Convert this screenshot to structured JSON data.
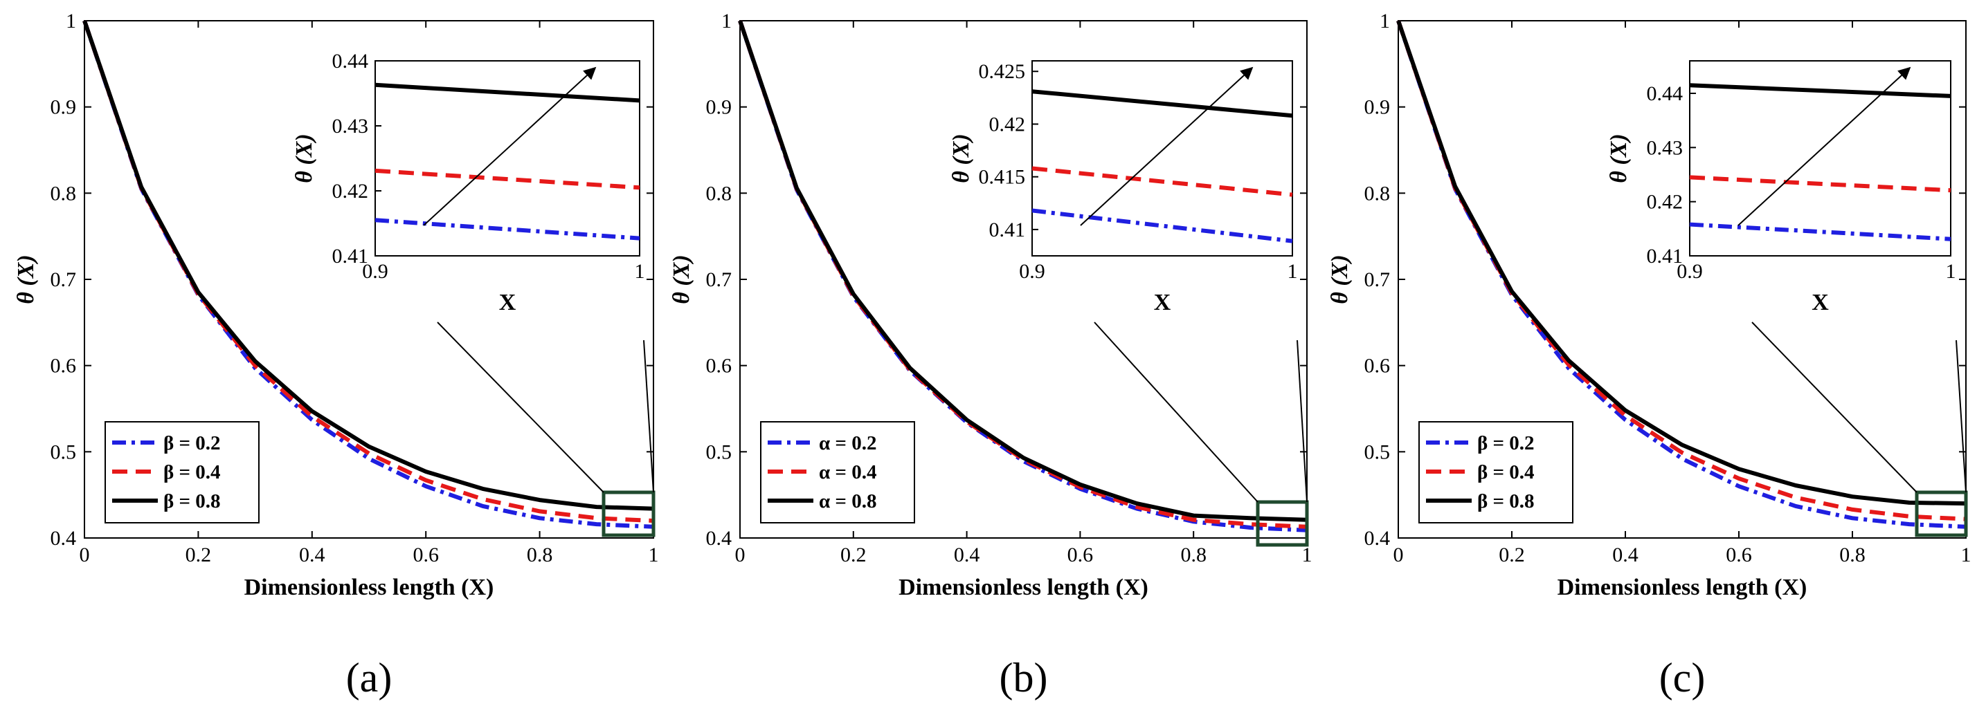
{
  "chart_data": [
    {
      "panel": "(a)",
      "type": "line",
      "xlabel": "Dimensionless length (X)",
      "ylabel": "θ (X)",
      "xlim": [
        0,
        1
      ],
      "ylim": [
        0.4,
        1
      ],
      "xticks": [
        "0",
        "0.2",
        "0.4",
        "0.6",
        "0.8",
        "1"
      ],
      "yticks": [
        "0.4",
        "0.5",
        "0.6",
        "0.7",
        "0.8",
        "0.9",
        "1"
      ],
      "legend_position": "bottom-left",
      "x": [
        0,
        0.1,
        0.2,
        0.3,
        0.4,
        0.5,
        0.6,
        0.7,
        0.8,
        0.9,
        1.0
      ],
      "series": [
        {
          "name": "β = 0.2",
          "style": "dash-dot",
          "color": "#1f1fe0",
          "values": [
            1.0,
            0.805,
            0.682,
            0.597,
            0.537,
            0.492,
            0.46,
            0.437,
            0.423,
            0.416,
            0.413
          ]
        },
        {
          "name": "β = 0.4",
          "style": "dashed",
          "color": "#e61919",
          "values": [
            1.0,
            0.806,
            0.683,
            0.6,
            0.541,
            0.498,
            0.467,
            0.445,
            0.431,
            0.423,
            0.42
          ]
        },
        {
          "name": "β = 0.8",
          "style": "solid",
          "color": "#000000",
          "values": [
            1.0,
            0.807,
            0.685,
            0.605,
            0.547,
            0.506,
            0.477,
            0.457,
            0.444,
            0.436,
            0.434
          ]
        }
      ],
      "inset": {
        "xlabel": "X",
        "ylabel": "θ (X)",
        "xlim": [
          0.9,
          1
        ],
        "ylim": [
          0.41,
          0.44
        ],
        "xticks": [
          "0.9",
          "1"
        ],
        "yticks": [
          "0.41",
          "0.42",
          "0.43",
          "0.44"
        ],
        "series_values": [
          [
            0.4155,
            0.4127
          ],
          [
            0.4231,
            0.4205
          ],
          [
            0.4363,
            0.4339
          ]
        ],
        "arrow": "increasing β"
      }
    },
    {
      "panel": "(b)",
      "type": "line",
      "xlabel": "Dimensionless length (X)",
      "ylabel": "θ (X)",
      "xlim": [
        0,
        1
      ],
      "ylim": [
        0.4,
        1
      ],
      "xticks": [
        "0",
        "0.2",
        "0.4",
        "0.6",
        "0.8",
        "1"
      ],
      "yticks": [
        "0.4",
        "0.5",
        "0.6",
        "0.7",
        "0.8",
        "0.9",
        "1"
      ],
      "legend_position": "bottom-left",
      "x": [
        0,
        0.1,
        0.2,
        0.3,
        0.4,
        0.5,
        0.6,
        0.7,
        0.8,
        0.9,
        1.0
      ],
      "series": [
        {
          "name": "α = 0.2",
          "style": "dash-dot",
          "color": "#1f1fe0",
          "values": [
            1.0,
            0.804,
            0.68,
            0.594,
            0.534,
            0.489,
            0.457,
            0.434,
            0.419,
            0.412,
            0.409
          ]
        },
        {
          "name": "α = 0.4",
          "style": "dashed",
          "color": "#e61919",
          "values": [
            1.0,
            0.805,
            0.681,
            0.595,
            0.535,
            0.491,
            0.459,
            0.436,
            0.421,
            0.416,
            0.413
          ]
        },
        {
          "name": "α = 0.8",
          "style": "solid",
          "color": "#000000",
          "values": [
            1.0,
            0.806,
            0.683,
            0.597,
            0.537,
            0.493,
            0.462,
            0.44,
            0.426,
            0.423,
            0.421
          ]
        }
      ],
      "inset": {
        "xlabel": "X",
        "ylabel": "θ (X)",
        "xlim": [
          0.9,
          1
        ],
        "ylim": [
          0.4075,
          0.426
        ],
        "xticks": [
          "0.9",
          "1"
        ],
        "yticks": [
          "0.41",
          "0.415",
          "0.42",
          "0.425"
        ],
        "series_values": [
          [
            0.4118,
            0.4089
          ],
          [
            0.4158,
            0.4133
          ],
          [
            0.4231,
            0.4208
          ]
        ],
        "arrow": "increasing α"
      }
    },
    {
      "panel": "(c)",
      "type": "line",
      "xlabel": "Dimensionless length (X)",
      "ylabel": "θ (X)",
      "xlim": [
        0,
        1
      ],
      "ylim": [
        0.4,
        1
      ],
      "xticks": [
        "0",
        "0.2",
        "0.4",
        "0.6",
        "0.8",
        "1"
      ],
      "yticks": [
        "0.4",
        "0.5",
        "0.6",
        "0.7",
        "0.8",
        "0.9",
        "1"
      ],
      "legend_position": "bottom-left",
      "x": [
        0,
        0.1,
        0.2,
        0.3,
        0.4,
        0.5,
        0.6,
        0.7,
        0.8,
        0.9,
        1.0
      ],
      "series": [
        {
          "name": "β = 0.2",
          "style": "dash-dot",
          "color": "#1f1fe0",
          "values": [
            1.0,
            0.805,
            0.682,
            0.597,
            0.537,
            0.492,
            0.46,
            0.437,
            0.423,
            0.416,
            0.413
          ]
        },
        {
          "name": "β = 0.4",
          "style": "dashed",
          "color": "#e61919",
          "values": [
            1.0,
            0.806,
            0.684,
            0.601,
            0.542,
            0.499,
            0.469,
            0.447,
            0.433,
            0.425,
            0.422
          ]
        },
        {
          "name": "β = 0.8",
          "style": "solid",
          "color": "#000000",
          "values": [
            1.0,
            0.808,
            0.686,
            0.606,
            0.548,
            0.508,
            0.48,
            0.461,
            0.448,
            0.441,
            0.44
          ]
        }
      ],
      "inset": {
        "xlabel": "X",
        "ylabel": "θ (X)",
        "xlim": [
          0.9,
          1
        ],
        "ylim": [
          0.41,
          0.446
        ],
        "xticks": [
          "0.9",
          "1"
        ],
        "yticks": [
          "0.41",
          "0.42",
          "0.43",
          "0.44"
        ],
        "series_values": [
          [
            0.4158,
            0.4131
          ],
          [
            0.4245,
            0.4221
          ],
          [
            0.4415,
            0.4395
          ]
        ],
        "arrow": "increasing β"
      }
    }
  ]
}
